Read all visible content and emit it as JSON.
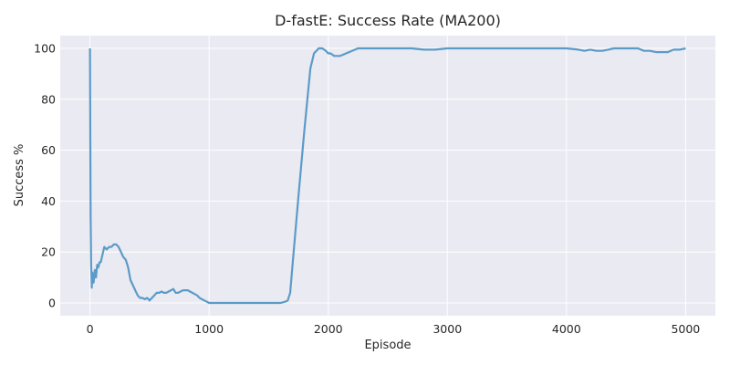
{
  "chart_data": {
    "type": "line",
    "title": "D-fastE: Success Rate (MA200)",
    "xlabel": "Episode",
    "ylabel": "Success %",
    "xlim": [
      -250,
      5250
    ],
    "ylim": [
      -5,
      105
    ],
    "xticks": [
      0,
      1000,
      2000,
      3000,
      4000,
      5000
    ],
    "yticks": [
      0,
      20,
      40,
      60,
      80,
      100
    ],
    "grid": true,
    "line_color": "#5b9bc8",
    "background_color": "#eaeaf2",
    "series": [
      {
        "x": [
          0,
          5,
          10,
          15,
          20,
          30,
          40,
          50,
          60,
          70,
          80,
          90,
          100,
          120,
          140,
          160,
          180,
          200,
          220,
          240,
          260,
          280,
          300,
          320,
          340,
          360,
          380,
          400,
          420,
          440,
          460,
          480,
          500,
          520,
          540,
          560,
          580,
          600,
          620,
          640,
          660,
          680,
          700,
          720,
          740,
          760,
          780,
          800,
          820,
          840,
          860,
          880,
          900,
          920,
          940,
          960,
          980,
          1000,
          1100,
          1200,
          1300,
          1400,
          1500,
          1600,
          1640,
          1660,
          1680,
          1700,
          1750,
          1800,
          1850,
          1880,
          1900,
          1920,
          1950,
          1980,
          2000,
          2020,
          2050,
          2100,
          2150,
          2200,
          2250,
          2300,
          2400,
          2500,
          2600,
          2700,
          2800,
          2900,
          3000,
          3200,
          3400,
          3600,
          3800,
          4000,
          4100,
          4150,
          4200,
          4250,
          4300,
          4350,
          4400,
          4500,
          4600,
          4650,
          4700,
          4750,
          4800,
          4850,
          4900,
          4950,
          5000
        ],
        "y": [
          100,
          35,
          15,
          6,
          12,
          8,
          13,
          10,
          15,
          14,
          16,
          16,
          18,
          22,
          21,
          22,
          22,
          23,
          23,
          22,
          20,
          18,
          17,
          14,
          9,
          7,
          5,
          3,
          2,
          2,
          1.5,
          2,
          1,
          2,
          3,
          4,
          4,
          4.5,
          4,
          4,
          4.5,
          5,
          5.5,
          4,
          4,
          4.5,
          5,
          5,
          5,
          4.5,
          4,
          3.5,
          3,
          2,
          1.5,
          1,
          0.5,
          0,
          0,
          0,
          0,
          0,
          0,
          0,
          0.5,
          1,
          4,
          15,
          42,
          68,
          92,
          98,
          99,
          100,
          100,
          99,
          98,
          98,
          97,
          97,
          98,
          99,
          100,
          100,
          100,
          100,
          100,
          100,
          99.5,
          99.5,
          100,
          100,
          100,
          100,
          100,
          100,
          99.5,
          99,
          99.5,
          99,
          99,
          99.5,
          100,
          100,
          100,
          99,
          99,
          98.5,
          98.5,
          98.5,
          99.5,
          99.5,
          100
        ]
      }
    ]
  }
}
